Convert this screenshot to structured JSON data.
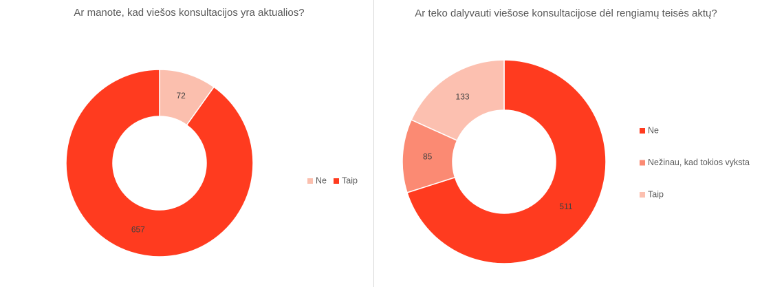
{
  "chart_data": [
    {
      "type": "donut",
      "title": "Ar manote, kad viešos konsultacijos yra aktualios?",
      "categories": [
        "Ne",
        "Taip"
      ],
      "values": [
        72,
        657
      ],
      "colors": [
        "#fbbfae",
        "#ff3b1f"
      ],
      "legend": "right",
      "legend_orientation": "horizontal"
    },
    {
      "type": "donut",
      "title": "Ar teko dalyvauti viešose konsultacijose dėl rengiamų teisės aktų?",
      "categories": [
        "Ne",
        "Nežinau, kad tokios vyksta",
        "Taip"
      ],
      "values": [
        511,
        85,
        133
      ],
      "colors": [
        "#ff3b1f",
        "#fb8a73",
        "#fcc0b0"
      ],
      "legend": "right",
      "legend_orientation": "vertical"
    }
  ]
}
